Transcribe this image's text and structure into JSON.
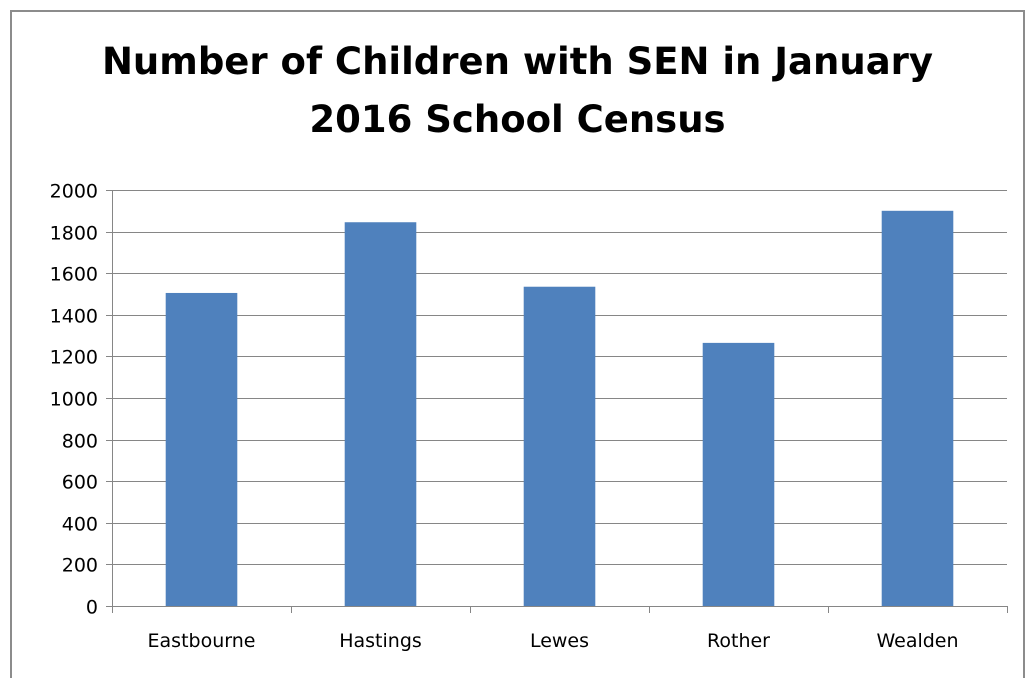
{
  "chart_data": {
    "type": "bar",
    "title": "Number of Children with SEN in January 2016 School Census",
    "title_lines": [
      "Number of Children with SEN in January",
      "2016 School Census"
    ],
    "categories": [
      "Eastbourne",
      "Hastings",
      "Lewes",
      "Rother",
      "Wealden"
    ],
    "values": [
      1505,
      1845,
      1535,
      1265,
      1900
    ],
    "ylim": [
      0,
      2000
    ],
    "yticks": [
      0,
      200,
      400,
      600,
      800,
      1000,
      1200,
      1400,
      1600,
      1800,
      2000
    ],
    "xlabel": "",
    "ylabel": "",
    "grid": true,
    "legend": "none",
    "bar_color": "#4f81bd",
    "grid_color": "#868686"
  }
}
